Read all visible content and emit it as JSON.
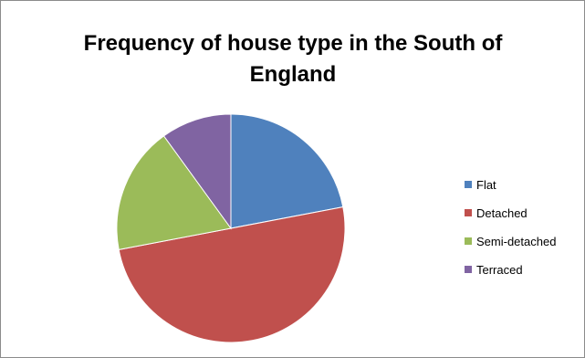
{
  "chart_data": {
    "type": "pie",
    "title": "Frequency of house type in the South of England",
    "categories": [
      "Flat",
      "Detached",
      "Semi-detached",
      "Terraced"
    ],
    "values": [
      22,
      50,
      18,
      10
    ],
    "colors": [
      "#4f81bd",
      "#c0504d",
      "#9bbb59",
      "#8064a2"
    ],
    "start_angle_deg": 0,
    "direction": "clockwise",
    "legend_position": "right"
  }
}
